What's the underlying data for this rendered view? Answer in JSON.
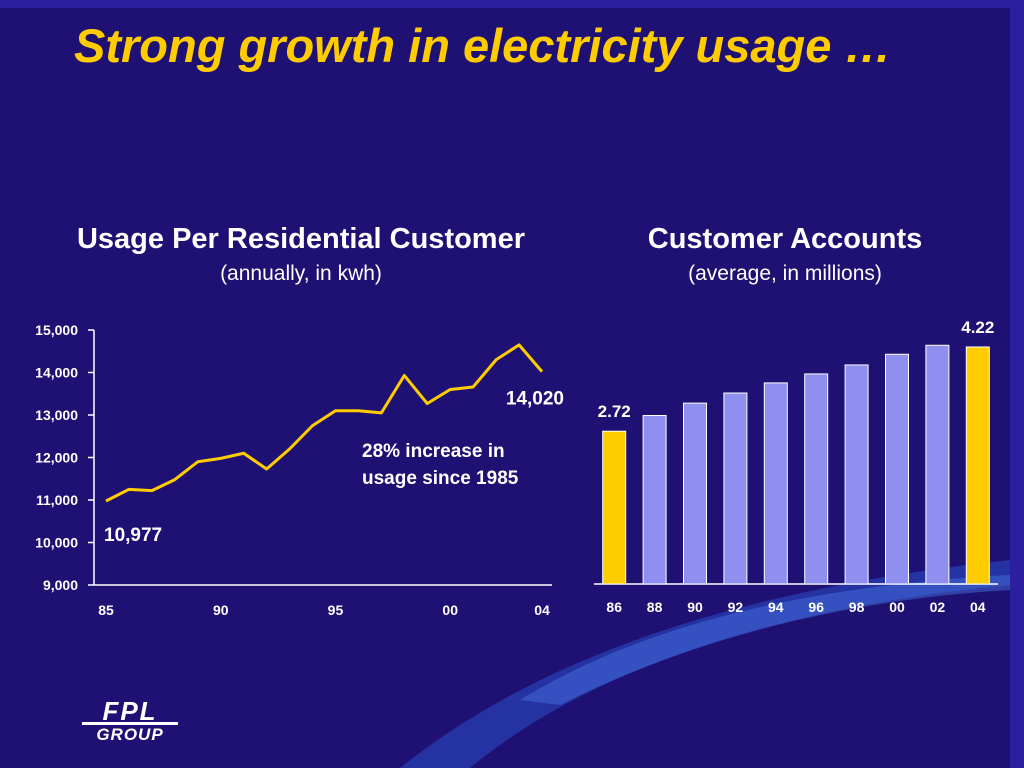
{
  "slide": {
    "title": "Strong growth in electricity usage …",
    "logo": {
      "line1": "FPL",
      "line2": "GROUP",
      "icon": "fpl-group-logo"
    }
  },
  "colors": {
    "background": "#1f1173",
    "title": "#ffcc00",
    "line": "#ffcc00",
    "bar": "#8f8ff0",
    "bar_highlight": "#ffcc00",
    "text": "#ffffff",
    "swoosh": "#3a5fd6"
  },
  "chart_data": [
    {
      "type": "line",
      "title": "Usage Per Residential Customer",
      "subtitle": "(annually, in kwh)",
      "xlabel": "",
      "ylabel": "",
      "ylim": [
        9000,
        15000
      ],
      "yticks": [
        9000,
        10000,
        11000,
        12000,
        13000,
        14000,
        15000
      ],
      "ytick_labels": [
        "9,000",
        "10,000",
        "11,000",
        "12,000",
        "13,000",
        "14,000",
        "15,000"
      ],
      "xticks": [
        1985,
        1990,
        1995,
        2000,
        2004
      ],
      "xtick_labels": [
        "85",
        "90",
        "95",
        "00",
        "04"
      ],
      "x": [
        1985,
        1986,
        1987,
        1988,
        1989,
        1990,
        1991,
        1992,
        1993,
        1994,
        1995,
        1996,
        1997,
        1998,
        1999,
        2000,
        2001,
        2002,
        2003,
        2004
      ],
      "values": [
        10977,
        11250,
        11220,
        11480,
        11900,
        11980,
        12100,
        11730,
        12200,
        12750,
        13100,
        13100,
        13050,
        13930,
        13270,
        13600,
        13660,
        14300,
        14650,
        14020
      ],
      "grid": false,
      "annotations": [
        {
          "text": "10,977",
          "x": 1985,
          "y": 10977
        },
        {
          "text": "14,020",
          "x": 2004,
          "y": 14020
        },
        {
          "lines": [
            "28% increase in",
            "usage since 1985"
          ]
        }
      ]
    },
    {
      "type": "bar",
      "title": "Customer Accounts",
      "subtitle": "(average, in millions)",
      "categories": [
        "86",
        "88",
        "90",
        "92",
        "94",
        "96",
        "98",
        "00",
        "02",
        "04"
      ],
      "values": [
        2.72,
        3.0,
        3.22,
        3.4,
        3.58,
        3.74,
        3.9,
        4.09,
        4.25,
        4.22
      ],
      "highlight": [
        0,
        9
      ],
      "data_labels": [
        {
          "index": 0,
          "text": "2.72"
        },
        {
          "index": 9,
          "text": "4.22"
        }
      ],
      "ylim": [
        0,
        4.7
      ],
      "grid": false
    }
  ]
}
